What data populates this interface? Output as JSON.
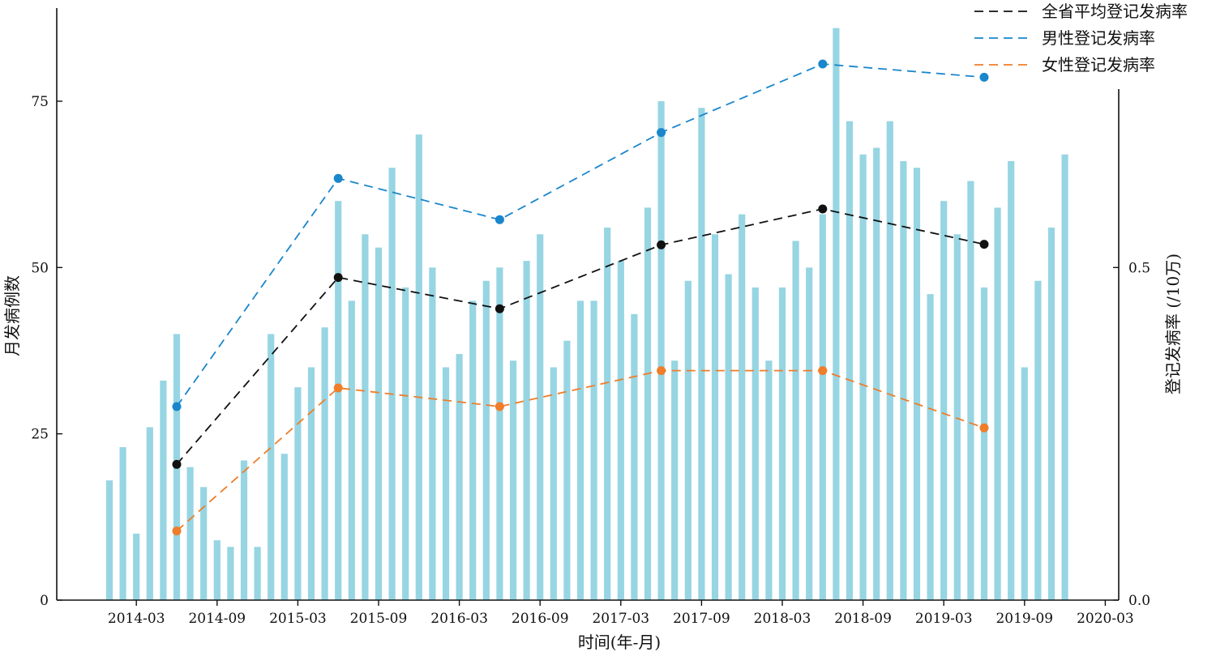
{
  "chart_data": {
    "type": "bar",
    "title": "",
    "xlabel": "时间(年-月)",
    "ylabel_left": "月发病例数",
    "ylabel_right": "登记发病率 (/10万)",
    "grid": false,
    "legend_placement": "top-right",
    "x_tick_labels": [
      "2014-03",
      "2014-09",
      "2015-03",
      "2015-09",
      "2016-03",
      "2016-09",
      "2017-03",
      "2017-09",
      "2018-03",
      "2018-09",
      "2019-03",
      "2019-09",
      "2020-03"
    ],
    "left_ticks": [
      "0",
      "25",
      "50",
      "75"
    ],
    "right_ticks": [
      "0.0",
      "0.5"
    ],
    "ylim_left": [
      0,
      89
    ],
    "ylim_right": [
      0,
      0.89
    ],
    "bar_color": "#97d5e3",
    "bars": {
      "start_month": "2014-01",
      "values": [
        18,
        23,
        10,
        26,
        33,
        40,
        20,
        17,
        9,
        8,
        21,
        8,
        40,
        22,
        32,
        35,
        41,
        60,
        45,
        55,
        53,
        65,
        47,
        70,
        50,
        35,
        37,
        45,
        48,
        50,
        36,
        51,
        55,
        35,
        39,
        45,
        45,
        56,
        51,
        43,
        59,
        75,
        36,
        48,
        74,
        55,
        49,
        58,
        47,
        36,
        47,
        54,
        50,
        58,
        86,
        72,
        67,
        68,
        72,
        66,
        65,
        46,
        60,
        55,
        63,
        47,
        59,
        66,
        35,
        48,
        56,
        67
      ]
    },
    "series": [
      {
        "name": "全省平均登记发病率",
        "color": "#111111",
        "dates": [
          "2014-06",
          "2015-06",
          "2016-06",
          "2017-06",
          "2018-06",
          "2019-06"
        ],
        "values": [
          0.204,
          0.485,
          0.438,
          0.534,
          0.588,
          0.535
        ]
      },
      {
        "name": "男性登记发病率",
        "color": "#1a86cc",
        "dates": [
          "2014-06",
          "2015-06",
          "2016-06",
          "2017-06",
          "2018-06",
          "2019-06"
        ],
        "values": [
          0.291,
          0.634,
          0.572,
          0.703,
          0.806,
          0.786
        ]
      },
      {
        "name": "女性登记发病率",
        "color": "#ef7d2a",
        "dates": [
          "2014-06",
          "2015-06",
          "2016-06",
          "2017-06",
          "2018-06",
          "2019-06"
        ],
        "values": [
          0.104,
          0.319,
          0.291,
          0.345,
          0.345,
          0.259
        ]
      }
    ]
  }
}
